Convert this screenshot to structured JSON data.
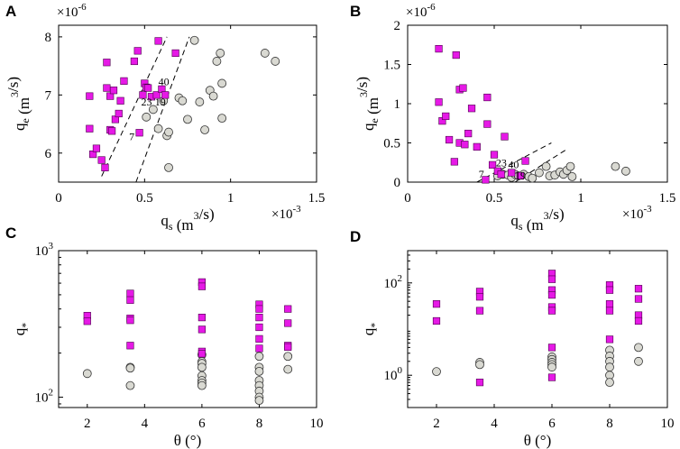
{
  "chart_data": [
    {
      "panel_label": "A",
      "type": "scatter",
      "xscale": "linear",
      "yscale": "linear",
      "xlim": [
        0,
        0.0015
      ],
      "ylim": [
        5.5e-06,
        8.2e-06
      ],
      "xticks": [
        0,
        0.0005,
        0.001,
        0.0015
      ],
      "xtick_labels": [
        "0",
        "0.5",
        "1",
        "1.5"
      ],
      "yticks": [
        6e-06,
        7e-06,
        8e-06
      ],
      "ytick_labels": [
        "6",
        "7",
        "8"
      ],
      "x_exponent_label": "×10",
      "x_exponent_power": "-3",
      "y_exponent_label": "×10",
      "y_exponent_power": "-6",
      "xlabel_main": "q",
      "xlabel_sub": "s",
      "xlabel_unit": " (m",
      "xlabel_sup": "3",
      "xlabel_end": "/s)",
      "ylabel_main": "q",
      "ylabel_sub": "e",
      "ylabel_unit": " (m",
      "ylabel_sup": "3",
      "ylabel_end": "/s)",
      "series": [
        {
          "name": "squares",
          "marker": "square",
          "color": "#e619e6",
          "points": [
            [
              0.00018,
              6.98e-06
            ],
            [
              0.00018,
              6.42e-06
            ],
            [
              0.0002,
              5.98e-06
            ],
            [
              0.00022,
              6.08e-06
            ],
            [
              0.00025,
              5.88e-06
            ],
            [
              0.00027,
              5.75e-06
            ],
            [
              0.00028,
              7.56e-06
            ],
            [
              0.00028,
              7.12e-06
            ],
            [
              0.0003,
              6.98e-06
            ],
            [
              0.0003,
              6.4e-06
            ],
            [
              0.00031,
              6.38e-06
            ],
            [
              0.00032,
              7.08e-06
            ],
            [
              0.00033,
              6.58e-06
            ],
            [
              0.00035,
              6.68e-06
            ],
            [
              0.00036,
              6.9e-06
            ],
            [
              0.00038,
              7.24e-06
            ],
            [
              0.00044,
              7.58e-06
            ],
            [
              0.00046,
              7.76e-06
            ],
            [
              0.00047,
              6.35e-06
            ],
            [
              0.00049,
              7e-06
            ],
            [
              0.0005,
              7.2e-06
            ],
            [
              0.00051,
              7.13e-06
            ],
            [
              0.00052,
              7.12e-06
            ],
            [
              0.00054,
              6.97e-06
            ],
            [
              0.00057,
              7e-06
            ],
            [
              0.00058,
              7.93e-06
            ],
            [
              0.0006,
              7.1e-06
            ],
            [
              0.00062,
              7e-06
            ],
            [
              0.00068,
              7.72e-06
            ]
          ]
        },
        {
          "name": "circles",
          "marker": "circle",
          "color": "#d9d9d2",
          "points": [
            [
              0.00051,
              6.62e-06
            ],
            [
              0.00055,
              6.75e-06
            ],
            [
              0.00058,
              6.42e-06
            ],
            [
              0.00061,
              6.9e-06
            ],
            [
              0.00063,
              6.3e-06
            ],
            [
              0.00064,
              6.36e-06
            ],
            [
              0.00064,
              5.75e-06
            ],
            [
              0.0007,
              6.95e-06
            ],
            [
              0.00072,
              6.9e-06
            ],
            [
              0.00075,
              6.58e-06
            ],
            [
              0.00082,
              6.88e-06
            ],
            [
              0.00079,
              7.94e-06
            ],
            [
              0.00085,
              6.4e-06
            ],
            [
              0.00088,
              7.08e-06
            ],
            [
              0.0009,
              6.98e-06
            ],
            [
              0.00092,
              7.58e-06
            ],
            [
              0.00094,
              7.72e-06
            ],
            [
              0.00095,
              7.2e-06
            ],
            [
              0.00095,
              6.6e-06
            ],
            [
              0.0012,
              7.72e-06
            ],
            [
              0.00126,
              7.58e-06
            ]
          ]
        }
      ],
      "lines": [
        {
          "points": [
            [
              0.00025,
              5.6e-06
            ],
            [
              0.00063,
              8e-06
            ]
          ]
        },
        {
          "points": [
            [
              0.00045,
              5.5e-06
            ],
            [
              0.00076,
              8e-06
            ]
          ]
        }
      ],
      "annotations": [
        {
          "text": "40",
          "x": 0.00058,
          "y": 7.17e-06
        },
        {
          "text": "23",
          "x": 0.00048,
          "y": 6.82e-06
        },
        {
          "text": "19",
          "x": 0.00056,
          "y": 6.82e-06
        },
        {
          "text": "7",
          "x": 0.00041,
          "y": 6.22e-06
        }
      ]
    },
    {
      "panel_label": "B",
      "type": "scatter",
      "xscale": "linear",
      "yscale": "linear",
      "xlim": [
        0,
        0.0015
      ],
      "ylim": [
        0,
        2e-06
      ],
      "xticks": [
        0,
        0.0005,
        0.001,
        0.0015
      ],
      "xtick_labels": [
        "0",
        "0.5",
        "1",
        "1.5"
      ],
      "yticks": [
        0,
        5e-07,
        1e-06,
        1.5e-06,
        2e-06
      ],
      "ytick_labels": [
        "0",
        "0.5",
        "1",
        "1.5",
        "2"
      ],
      "x_exponent_label": "×10",
      "x_exponent_power": "-3",
      "y_exponent_label": "×10",
      "y_exponent_power": "-6",
      "xlabel_main": "q",
      "xlabel_sub": "s",
      "xlabel_unit": " (m",
      "xlabel_sup": "3",
      "xlabel_end": "/s)",
      "ylabel_main": "q",
      "ylabel_sub": "e",
      "ylabel_unit": " (m",
      "ylabel_sup": "3",
      "ylabel_end": "/s)",
      "series": [
        {
          "name": "squares",
          "marker": "square",
          "color": "#e619e6",
          "points": [
            [
              0.00018,
              1.7e-06
            ],
            [
              0.00018,
              1.02e-06
            ],
            [
              0.0002,
              7.8e-07
            ],
            [
              0.00022,
              8.4e-07
            ],
            [
              0.00024,
              5.4e-07
            ],
            [
              0.00027,
              2.6e-07
            ],
            [
              0.00028,
              1.62e-06
            ],
            [
              0.0003,
              1.18e-06
            ],
            [
              0.0003,
              5e-07
            ],
            [
              0.00032,
              1.2e-06
            ],
            [
              0.00033,
              4.8e-07
            ],
            [
              0.00035,
              6.2e-07
            ],
            [
              0.00037,
              9.4e-07
            ],
            [
              0.0004,
              4.5e-07
            ],
            [
              0.00046,
              1.08e-06
            ],
            [
              0.00046,
              7.4e-07
            ],
            [
              0.00049,
              2.2e-07
            ],
            [
              0.0005,
              3.5e-07
            ],
            [
              0.00052,
              1.4e-07
            ],
            [
              0.00054,
              1e-07
            ],
            [
              0.00056,
              5.8e-07
            ],
            [
              0.0006,
              1.2e-07
            ],
            [
              0.00065,
              8e-08
            ],
            [
              0.00068,
              2.7e-07
            ],
            [
              0.00045,
              3e-08
            ]
          ]
        },
        {
          "name": "circles",
          "marker": "circle",
          "color": "#d9d9d2",
          "points": [
            [
              0.00052,
              8e-08
            ],
            [
              0.00055,
              1e-07
            ],
            [
              0.00058,
              9e-08
            ],
            [
              0.0006,
              6e-08
            ],
            [
              0.00062,
              1e-07
            ],
            [
              0.00064,
              8e-08
            ],
            [
              0.00067,
              1e-07
            ],
            [
              0.0007,
              7e-08
            ],
            [
              0.00072,
              5e-08
            ],
            [
              0.00076,
              1.2e-07
            ],
            [
              0.0008,
              2e-07
            ],
            [
              0.00082,
              8e-08
            ],
            [
              0.00085,
              9e-08
            ],
            [
              0.00088,
              1.3e-07
            ],
            [
              0.0009,
              1e-07
            ],
            [
              0.00092,
              1.5e-07
            ],
            [
              0.00094,
              2e-07
            ],
            [
              0.00095,
              7e-08
            ],
            [
              0.0012,
              2e-07
            ],
            [
              0.00126,
              1.4e-07
            ]
          ]
        }
      ],
      "lines": [
        {
          "points": [
            [
              0.0004,
              0.0
            ],
            [
              0.00083,
              5e-07
            ]
          ]
        },
        {
          "points": [
            [
              0.00062,
              0.0
            ],
            [
              0.00092,
              4.2e-07
            ]
          ]
        }
      ],
      "annotations": [
        {
          "text": "7",
          "x": 0.00041,
          "y": 6e-08
        },
        {
          "text": "23",
          "x": 0.00051,
          "y": 2e-07
        },
        {
          "text": "40",
          "x": 0.00058,
          "y": 1.8e-07
        },
        {
          "text": "19",
          "x": 0.00062,
          "y": 4e-08
        }
      ]
    },
    {
      "panel_label": "C",
      "type": "scatter",
      "xscale": "linear",
      "yscale": "log",
      "xlim": [
        1,
        10
      ],
      "ylim": [
        85,
        1000
      ],
      "xticks": [
        2,
        4,
        6,
        8,
        10
      ],
      "xtick_labels": [
        "2",
        "4",
        "6",
        "8",
        "10"
      ],
      "yticks": [
        100,
        1000
      ],
      "ytick_base": "10",
      "ytick_powers": [
        "2",
        "3"
      ],
      "xlabel": "θ (°)",
      "ylabel_main": "q",
      "ylabel_sub": "*",
      "series": [
        {
          "name": "squares",
          "marker": "square",
          "color": "#e619e6",
          "points": [
            [
              2,
              360
            ],
            [
              2,
              330
            ],
            [
              3.5,
              510
            ],
            [
              3.5,
              460
            ],
            [
              3.5,
              345
            ],
            [
              3.5,
              335
            ],
            [
              3.5,
              225
            ],
            [
              6,
              610
            ],
            [
              6,
              570
            ],
            [
              6,
              350
            ],
            [
              6,
              290
            ],
            [
              6,
              205
            ],
            [
              6,
              198
            ],
            [
              8,
              430
            ],
            [
              8,
              400
            ],
            [
              8,
              350
            ],
            [
              8,
              300
            ],
            [
              8,
              250
            ],
            [
              8,
              215
            ],
            [
              9,
              400
            ],
            [
              9,
              320
            ],
            [
              9,
              225
            ],
            [
              9,
              220
            ]
          ]
        },
        {
          "name": "circles",
          "marker": "circle",
          "color": "#d9d9d2",
          "points": [
            [
              2,
              145
            ],
            [
              3.5,
              160
            ],
            [
              3.5,
              158
            ],
            [
              3.5,
              120
            ],
            [
              6,
              195
            ],
            [
              6,
              175
            ],
            [
              6,
              170
            ],
            [
              6,
              160
            ],
            [
              6,
              140
            ],
            [
              6,
              130
            ],
            [
              6,
              125
            ],
            [
              6,
              120
            ],
            [
              8,
              190
            ],
            [
              8,
              160
            ],
            [
              8,
              150
            ],
            [
              8,
              130
            ],
            [
              8,
              120
            ],
            [
              8,
              110
            ],
            [
              8,
              100
            ],
            [
              8,
              95
            ],
            [
              9,
              190
            ],
            [
              9,
              155
            ]
          ]
        }
      ]
    },
    {
      "panel_label": "D",
      "type": "scatter",
      "xscale": "linear",
      "yscale": "log",
      "xlim": [
        1,
        10
      ],
      "ylim": [
        0.2,
        500
      ],
      "xticks": [
        2,
        4,
        6,
        8,
        10
      ],
      "xtick_labels": [
        "2",
        "4",
        "6",
        "8",
        "10"
      ],
      "yticks": [
        1,
        100
      ],
      "ytick_base": "10",
      "ytick_powers": [
        "0",
        "2"
      ],
      "xlabel": "θ (°)",
      "ylabel_main": "q",
      "ylabel_sub": "*",
      "series": [
        {
          "name": "squares",
          "marker": "square",
          "color": "#e619e6",
          "points": [
            [
              2,
              35
            ],
            [
              2,
              15
            ],
            [
              3.5,
              65
            ],
            [
              3.5,
              50
            ],
            [
              3.5,
              25
            ],
            [
              3.5,
              0.7
            ],
            [
              6,
              160
            ],
            [
              6,
              120
            ],
            [
              6,
              70
            ],
            [
              6,
              55
            ],
            [
              6,
              30
            ],
            [
              6,
              25
            ],
            [
              6,
              4
            ],
            [
              6,
              0.9
            ],
            [
              8,
              90
            ],
            [
              8,
              70
            ],
            [
              8,
              35
            ],
            [
              8,
              25
            ],
            [
              8,
              6
            ],
            [
              9,
              75
            ],
            [
              9,
              45
            ],
            [
              9,
              20
            ],
            [
              9,
              15
            ]
          ]
        },
        {
          "name": "circles",
          "marker": "circle",
          "color": "#d9d9d2",
          "points": [
            [
              2,
              1.2
            ],
            [
              3.5,
              1.9
            ],
            [
              3.5,
              1.7
            ],
            [
              6,
              2.5
            ],
            [
              6,
              2.2
            ],
            [
              6,
              1.9
            ],
            [
              6,
              1.7
            ],
            [
              6,
              1.5
            ],
            [
              8,
              3.5
            ],
            [
              8,
              2.6
            ],
            [
              8,
              2.0
            ],
            [
              8,
              1.5
            ],
            [
              8,
              1.0
            ],
            [
              8,
              0.7
            ],
            [
              9,
              4
            ],
            [
              9,
              2
            ]
          ]
        }
      ]
    }
  ]
}
